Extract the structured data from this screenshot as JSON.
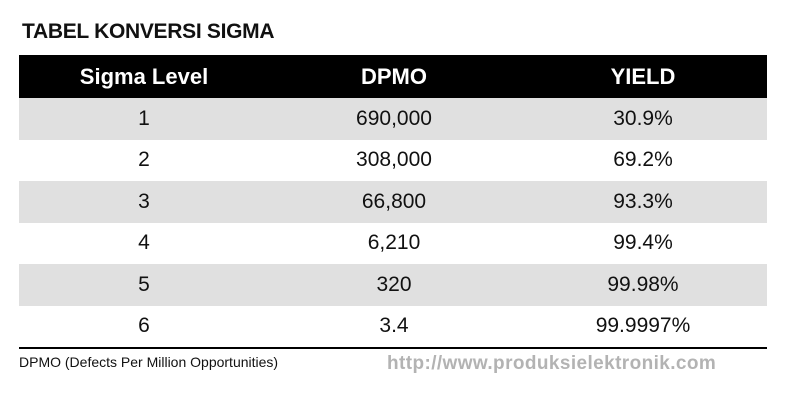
{
  "title": "TABEL KONVERSI SIGMA",
  "table": {
    "headers": [
      "Sigma Level",
      "DPMO",
      "YIELD"
    ],
    "rows": [
      [
        "1",
        "690,000",
        "30.9%"
      ],
      [
        "2",
        "308,000",
        "69.2%"
      ],
      [
        "3",
        "66,800",
        "93.3%"
      ],
      [
        "4",
        "6,210",
        "99.4%"
      ],
      [
        "5",
        "320",
        "99.98%"
      ],
      [
        "6",
        "3.4",
        "99.9997%"
      ]
    ]
  },
  "footnote": "DPMO (Defects Per Million Opportunities)",
  "url": "http://www.produksielektronik.com",
  "colors": {
    "header_bg": "#000000",
    "header_text": "#ffffff",
    "shaded_row": "#e0e0e0",
    "url_text": "#b3b3b3"
  }
}
